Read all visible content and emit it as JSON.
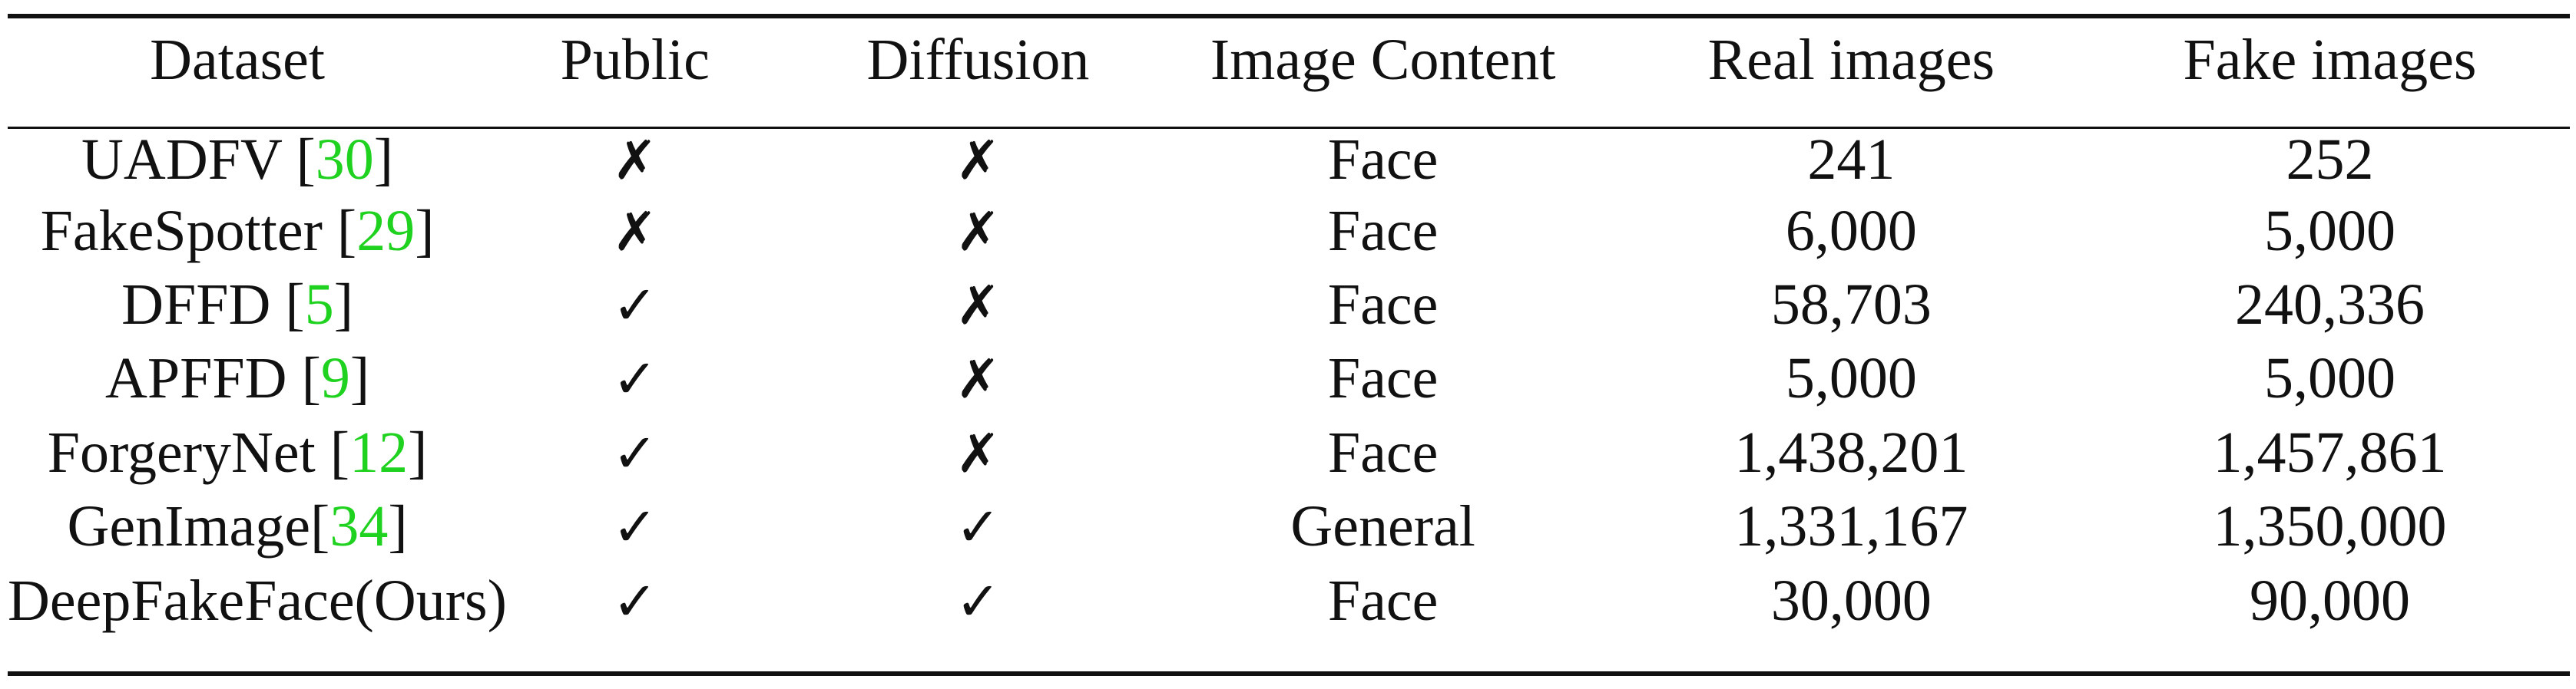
{
  "table": {
    "headers": [
      "Dataset",
      "Public",
      "Diffusion",
      "Image Content",
      "Real images",
      "Fake images"
    ],
    "rows": [
      {
        "name": "UADFV ",
        "cite": "30",
        "name_suffix": "",
        "public": "✗",
        "diffusion": "✗",
        "content": "Face",
        "real": "241",
        "fake": "252"
      },
      {
        "name": "FakeSpotter ",
        "cite": "29",
        "name_suffix": "",
        "public": "✗",
        "diffusion": "✗",
        "content": "Face",
        "real": "6,000",
        "fake": "5,000"
      },
      {
        "name": "DFFD ",
        "cite": "5",
        "name_suffix": "",
        "public": "✓",
        "diffusion": "✗",
        "content": "Face",
        "real": "58,703",
        "fake": "240,336"
      },
      {
        "name": "APFFD ",
        "cite": "9",
        "name_suffix": "",
        "public": "✓",
        "diffusion": "✗",
        "content": "Face",
        "real": "5,000",
        "fake": "5,000"
      },
      {
        "name": "ForgeryNet ",
        "cite": "12",
        "name_suffix": "",
        "public": "✓",
        "diffusion": "✗",
        "content": "Face",
        "real": "1,438,201",
        "fake": "1,457,861"
      },
      {
        "name": "GenImage",
        "cite": "34",
        "name_suffix": "",
        "public": "✓",
        "diffusion": "✓",
        "content": "General",
        "real": "1,331,167",
        "fake": "1,350,000"
      },
      {
        "name": "DeepFakeFace(Ours)",
        "cite": "",
        "name_suffix": "",
        "public": "✓",
        "diffusion": "✓",
        "content": "Face",
        "real": "30,000",
        "fake": "90,000"
      }
    ]
  },
  "colors": {
    "text": "#111111",
    "citation": "#1fd21f",
    "rule": "#111111"
  }
}
